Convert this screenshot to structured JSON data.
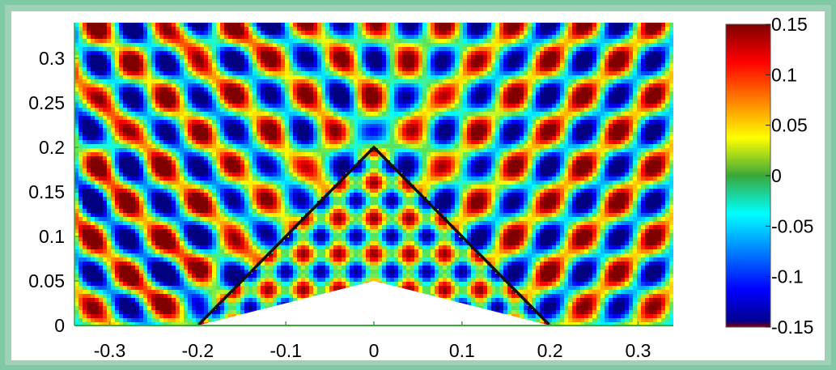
{
  "chart_data": {
    "type": "heatmap",
    "title": "",
    "xlabel": "",
    "ylabel": "",
    "xlim": [
      -0.34,
      0.34
    ],
    "ylim": [
      0,
      0.34
    ],
    "x_ticks": [
      {
        "value": -0.3,
        "label": "-0.3"
      },
      {
        "value": -0.2,
        "label": "-0.2"
      },
      {
        "value": -0.1,
        "label": "-0.1"
      },
      {
        "value": 0,
        "label": "0"
      },
      {
        "value": 0.1,
        "label": "0.1"
      },
      {
        "value": 0.2,
        "label": "0.2"
      },
      {
        "value": 0.3,
        "label": "0.3"
      }
    ],
    "y_ticks": [
      {
        "value": 0,
        "label": "0"
      },
      {
        "value": 0.05,
        "label": "0.05"
      },
      {
        "value": 0.1,
        "label": "0.1"
      },
      {
        "value": 0.15,
        "label": "0.15"
      },
      {
        "value": 0.2,
        "label": "0.2"
      },
      {
        "value": 0.25,
        "label": "0.25"
      },
      {
        "value": 0.3,
        "label": "0.3"
      }
    ],
    "colorbar": {
      "range": [
        -0.15,
        0.15
      ],
      "ticks": [
        {
          "value": 0.15,
          "label": "0.15"
        },
        {
          "value": 0.1,
          "label": "0.1"
        },
        {
          "value": 0.05,
          "label": "0.05"
        },
        {
          "value": 0,
          "label": "0"
        },
        {
          "value": -0.05,
          "label": "-0.05"
        },
        {
          "value": -0.1,
          "label": "-0.1"
        },
        {
          "value": -0.15,
          "label": "-0.15"
        }
      ],
      "colormap": "jet"
    },
    "wedge_outline": [
      [
        -0.2,
        0
      ],
      [
        0,
        0.2
      ],
      [
        0.2,
        0
      ]
    ],
    "cavity_apex": [
      0,
      0.05
    ],
    "grid": false,
    "legend": "none"
  }
}
